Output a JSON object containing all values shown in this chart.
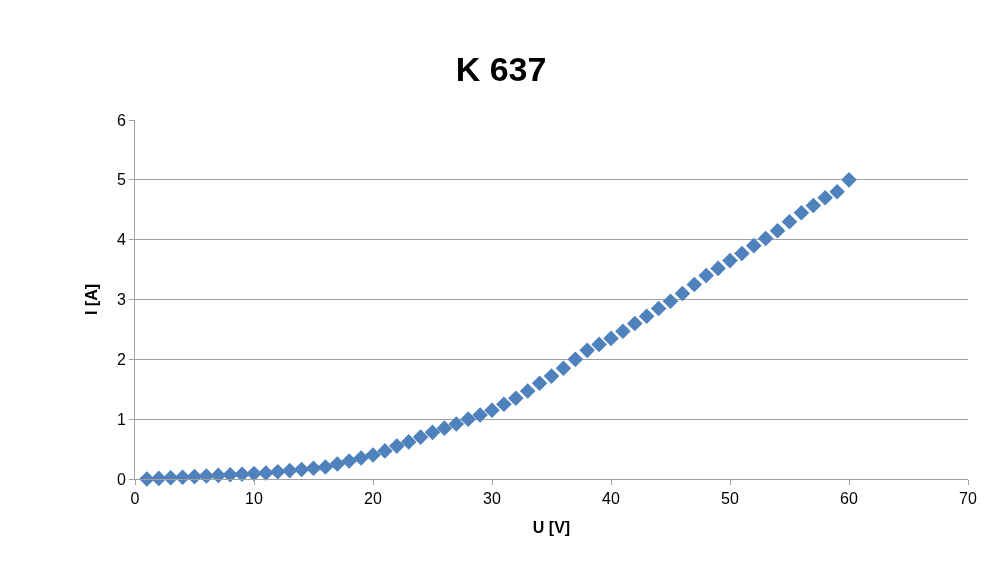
{
  "chart_data": {
    "type": "scatter",
    "title": "K 637",
    "xlabel": "U [V]",
    "ylabel": "I [A]",
    "x": [
      1,
      2,
      3,
      4,
      5,
      6,
      7,
      8,
      9,
      10,
      11,
      12,
      13,
      14,
      15,
      16,
      17,
      18,
      19,
      20,
      21,
      22,
      23,
      24,
      25,
      26,
      27,
      28,
      29,
      30,
      31,
      32,
      33,
      34,
      35,
      36,
      37,
      38,
      39,
      40,
      41,
      42,
      43,
      44,
      45,
      46,
      47,
      48,
      49,
      50,
      51,
      52,
      53,
      54,
      55,
      56,
      57,
      58,
      59,
      60
    ],
    "series": [
      {
        "color": "#4f81bd",
        "values": [
          0,
          0.01,
          0.02,
          0.03,
          0.04,
          0.05,
          0.06,
          0.07,
          0.08,
          0.09,
          0.1,
          0.12,
          0.14,
          0.16,
          0.18,
          0.2,
          0.25,
          0.3,
          0.35,
          0.4,
          0.47,
          0.55,
          0.62,
          0.7,
          0.78,
          0.85,
          0.92,
          1.0,
          1.07,
          1.15,
          1.25,
          1.35,
          1.47,
          1.6,
          1.72,
          1.85,
          2.0,
          2.15,
          2.25,
          2.35,
          2.47,
          2.6,
          2.72,
          2.85,
          2.97,
          3.1,
          3.25,
          3.4,
          3.52,
          3.65,
          3.77,
          3.9,
          4.02,
          4.15,
          4.3,
          4.45,
          4.57,
          4.7,
          4.8,
          5.0
        ]
      }
    ],
    "xlim": [
      0,
      70
    ],
    "xticks": [
      0,
      10,
      20,
      30,
      40,
      50,
      60,
      70
    ],
    "ylim": [
      0,
      6
    ],
    "yticks": [
      0,
      1,
      2,
      3,
      4,
      5,
      6
    ],
    "grid": "y",
    "legend": false,
    "marker": "diamond"
  }
}
